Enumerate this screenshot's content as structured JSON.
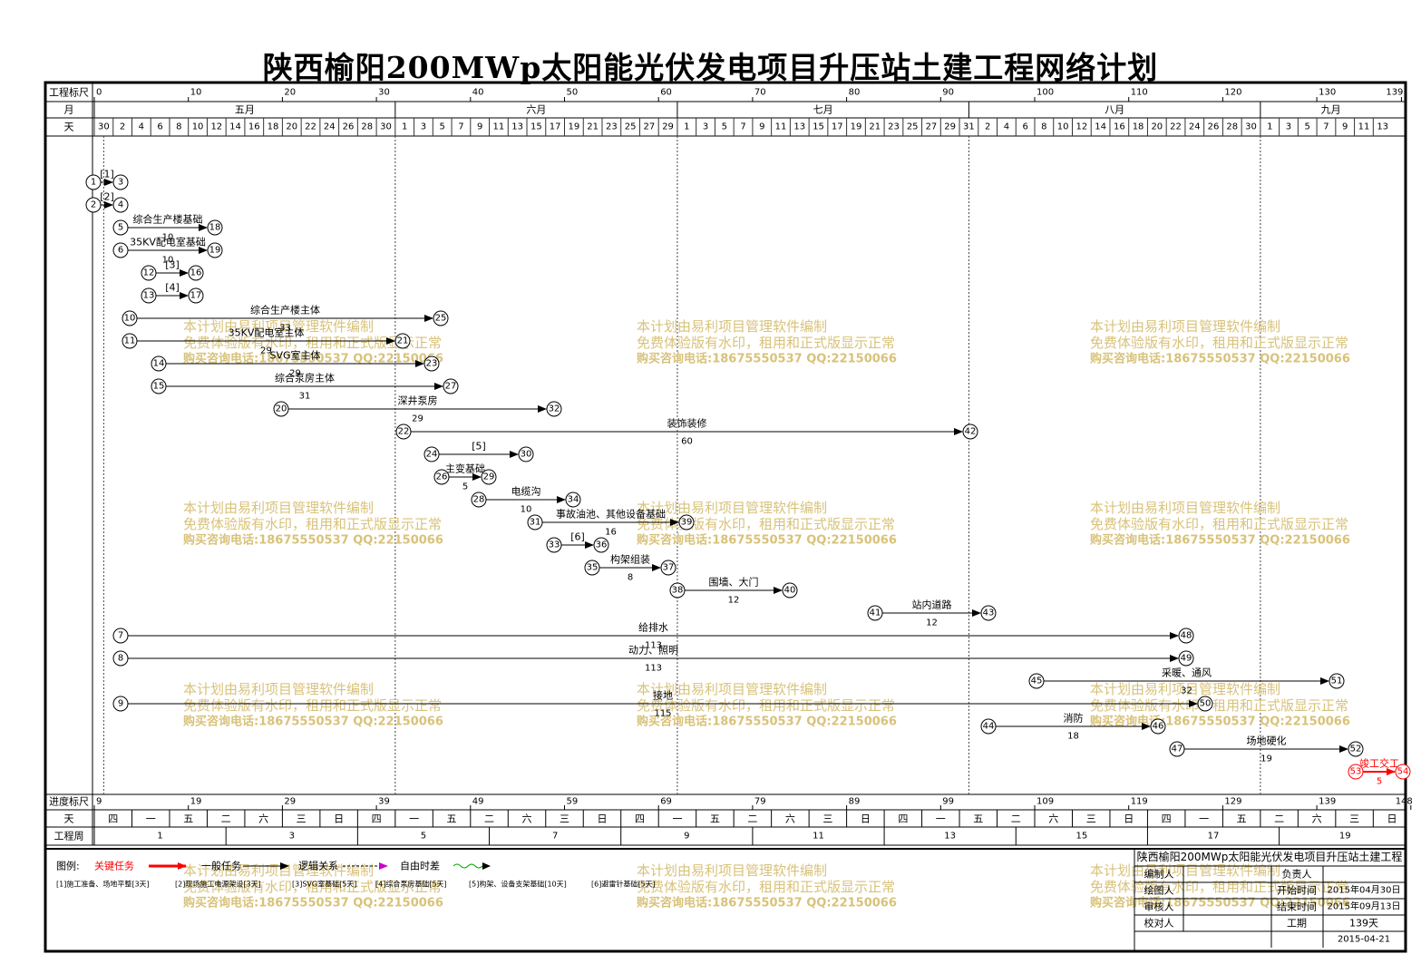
{
  "title": "陕西榆阳200MWp太阳能光伏发电项目升压站土建工程网络计划",
  "header": {
    "ruler_label": "工程标尺",
    "month_label": "月",
    "day_label": "天",
    "ruler_ticks": [
      "0",
      "10",
      "20",
      "30",
      "40",
      "50",
      "60",
      "70",
      "80",
      "90",
      "100",
      "110",
      "120",
      "130",
      "139"
    ],
    "months": [
      "五月",
      "六月",
      "七月",
      "八月",
      "九月"
    ],
    "days": [
      "30",
      "2",
      "4",
      "6",
      "8",
      "10",
      "12",
      "14",
      "16",
      "18",
      "20",
      "22",
      "24",
      "26",
      "28",
      "30",
      "1",
      "3",
      "5",
      "7",
      "9",
      "11",
      "13",
      "15",
      "17",
      "19",
      "21",
      "23",
      "25",
      "27",
      "29",
      "1",
      "3",
      "5",
      "7",
      "9",
      "11",
      "13",
      "15",
      "17",
      "19",
      "21",
      "23",
      "25",
      "27",
      "29",
      "31",
      "2",
      "4",
      "6",
      "8",
      "10",
      "12",
      "14",
      "16",
      "18",
      "20",
      "22",
      "24",
      "26",
      "28",
      "30",
      "1",
      "3",
      "5",
      "7",
      "9",
      "11",
      "13"
    ]
  },
  "footer": {
    "progress_label": "进度标尺",
    "day_label": "天",
    "week_label": "工程周",
    "progress_ticks": [
      "9",
      "19",
      "29",
      "39",
      "49",
      "59",
      "69",
      "79",
      "89",
      "99",
      "109",
      "119",
      "129",
      "139",
      "148"
    ],
    "weekdays": [
      "四",
      "一",
      "五",
      "二",
      "六",
      "三",
      "日",
      "四",
      "一",
      "五",
      "二",
      "六",
      "三",
      "日",
      "四",
      "一",
      "五",
      "二",
      "六",
      "三",
      "日",
      "四",
      "一",
      "五",
      "二",
      "六",
      "三",
      "日",
      "四",
      "一",
      "五",
      "二",
      "六",
      "三",
      "日"
    ],
    "weeks": [
      "1",
      "3",
      "5",
      "7",
      "9",
      "11",
      "13",
      "15",
      "17",
      "19"
    ]
  },
  "tasks": [
    {
      "from": "1",
      "to": "3",
      "label": "[1]",
      "dur": ""
    },
    {
      "from": "2",
      "to": "4",
      "label": "[2]",
      "dur": ""
    },
    {
      "from": "5",
      "to": "18",
      "label": "综合生产楼基础",
      "dur": "10"
    },
    {
      "from": "6",
      "to": "19",
      "label": "35KV配电室基础",
      "dur": "10"
    },
    {
      "from": "12",
      "to": "16",
      "label": "[3]",
      "dur": ""
    },
    {
      "from": "13",
      "to": "17",
      "label": "[4]",
      "dur": ""
    },
    {
      "from": "10",
      "to": "25",
      "label": "综合生产楼主体",
      "dur": "33"
    },
    {
      "from": "11",
      "to": "21",
      "label": "35KV配电室主体",
      "dur": "29"
    },
    {
      "from": "14",
      "to": "23",
      "label": "SVG室主体",
      "dur": "29"
    },
    {
      "from": "15",
      "to": "27",
      "label": "综合泵房主体",
      "dur": "31"
    },
    {
      "from": "20",
      "to": "32",
      "label": "深井泵房",
      "dur": "29"
    },
    {
      "from": "22",
      "to": "42",
      "label": "装饰装修",
      "dur": "60"
    },
    {
      "from": "24",
      "to": "30",
      "label": "[5]",
      "dur": ""
    },
    {
      "from": "26",
      "to": "29",
      "label": "主变基础",
      "dur": "5"
    },
    {
      "from": "28",
      "to": "34",
      "label": "电缆沟",
      "dur": "10"
    },
    {
      "from": "31",
      "to": "39",
      "label": "事故油池、其他设备基础",
      "dur": "16"
    },
    {
      "from": "33",
      "to": "36",
      "label": "[6]",
      "dur": ""
    },
    {
      "from": "35",
      "to": "37",
      "label": "构架组装",
      "dur": "8"
    },
    {
      "from": "38",
      "to": "40",
      "label": "围墙、大门",
      "dur": "12"
    },
    {
      "from": "41",
      "to": "43",
      "label": "站内道路",
      "dur": "12"
    },
    {
      "from": "7",
      "to": "48",
      "label": "给排水",
      "dur": "113"
    },
    {
      "from": "8",
      "to": "49",
      "label": "动力、照明",
      "dur": "113"
    },
    {
      "from": "45",
      "to": "51",
      "label": "采暖、通风",
      "dur": "32"
    },
    {
      "from": "9",
      "to": "50",
      "label": "接地",
      "dur": "115"
    },
    {
      "from": "44",
      "to": "46",
      "label": "消防",
      "dur": "18"
    },
    {
      "from": "47",
      "to": "52",
      "label": "场地硬化",
      "dur": "19"
    },
    {
      "from": "53",
      "to": "54",
      "label": "竣工交工",
      "dur": "5"
    }
  ],
  "watermark": {
    "line1": "本计划由易利项目管理软件编制",
    "line2": "免费体验版有水印，租用和正式版显示正常",
    "line3": "购买咨询电话:18675550537 QQ:22150066"
  },
  "legend": {
    "title": "图例:",
    "critical": "关键任务",
    "normal": "一般任务",
    "logic": "逻辑关系",
    "float": "自由时差",
    "notes": [
      "[1]施工准备、场地平整[3天]",
      "[2]现场施工电源架设[3天]",
      "[3]SVG室基础[5天]",
      "[4]综合泵房基础[5天]",
      "[5]构架、设备支架基础[10天]",
      "[6]避雷针基础[5天]"
    ],
    "colors": {
      "critical": "#ff0000",
      "float": "#00aa00",
      "logic": "#cc00cc"
    }
  },
  "info": {
    "project": "陕西榆阳200MWp太阳能光伏发电项目升压站土建工程",
    "editor_label": "编制人",
    "owner_label": "负责人",
    "drawer_label": "绘图人",
    "start_label": "开始时间",
    "start_value": "2015年04月30日",
    "reviewer_label": "审核人",
    "end_label": "结束时间",
    "end_value": "2015年09月13日",
    "duration_label": "工期",
    "duration_value": "139天",
    "checker_label": "校对人",
    "date_value": "2015-04-21"
  }
}
